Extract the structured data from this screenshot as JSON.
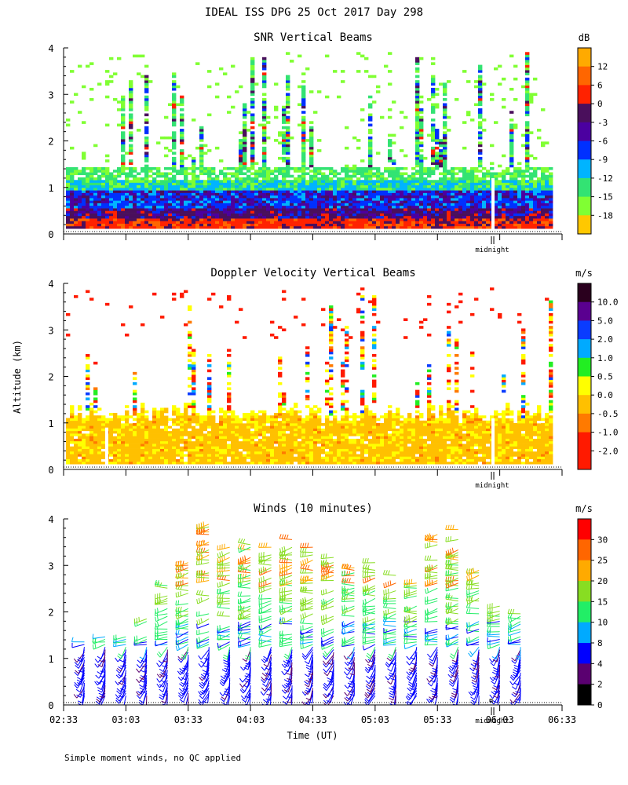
{
  "figure_title": "IDEAL ISS DPG  25 Oct 2017 Day 298",
  "footnote": "Simple moment winds, no QC applied",
  "shared_axes": {
    "ylabel": "Altitude (km)",
    "xlabel": "Time (UT)",
    "x_tick_labels": [
      "02:33",
      "03:03",
      "03:33",
      "04:03",
      "04:33",
      "05:03",
      "05:33",
      "06:03",
      "06:33"
    ],
    "x_range_minutes_from_0233": [
      0,
      240
    ],
    "y_range_km": [
      0,
      4
    ],
    "y_ticks": [
      "0",
      "1",
      "2",
      "3",
      "4"
    ],
    "midnight_label": "midnight"
  },
  "chart_data": [
    {
      "type": "heatmap",
      "title": "SNR Vertical Beams",
      "units": "dB",
      "colorbar": {
        "labels": [
          "12",
          "6",
          "0",
          "-3",
          "-6",
          "-9",
          "-12",
          "-15",
          "-18"
        ],
        "colors": [
          "#ffaa00",
          "#ff6600",
          "#ff2200",
          "#4a0f5c",
          "#4b00a0",
          "#0030ff",
          "#00b4ff",
          "#33e373",
          "#80ff33",
          "#ffc800"
        ]
      },
      "data_range_km": [
        0.1,
        3.9
      ],
      "notes": "Strongest SNR (red/orange) below 0.4 km, purple/blue band 0.3-1 km, sparse green convective plumes to 4 km"
    },
    {
      "type": "heatmap",
      "title": "Doppler Velocity Vertical Beams",
      "units": "m/s",
      "colorbar": {
        "labels": [
          "10.0",
          "5.0",
          "2.0",
          "1.0",
          "0.5",
          "0.0",
          "-0.5",
          "-1.0",
          "-2.0"
        ],
        "colors": [
          "#2a001e",
          "#5a0090",
          "#0a3cff",
          "#00aaff",
          "#22ee22",
          "#ffff00",
          "#ffc000",
          "#ff7a00",
          "#ff1a00",
          "#ff1a00"
        ]
      },
      "data_range_km": [
        0.1,
        3.9
      ],
      "notes": "Mostly gold/yellow (-0.5 to 0 m/s) below 1.2 km; scattered red/yellow returns up to 4 km"
    },
    {
      "type": "wind_barbs",
      "title": "Winds (10 minutes)",
      "units": "m/s",
      "averaging_minutes": 10,
      "colorbar": {
        "labels": [
          "30",
          "25",
          "20",
          "15",
          "10",
          "8",
          "4",
          "2",
          "0"
        ],
        "colors": [
          "#ff0000",
          "#ff6600",
          "#ffaa00",
          "#88dd22",
          "#22ee66",
          "#00aaff",
          "#0000ff",
          "#5a0070",
          "#000000"
        ]
      },
      "profile_times_minutes_from_0233": [
        10,
        20,
        30,
        40,
        50,
        60,
        70,
        80,
        90,
        100,
        110,
        120,
        130,
        140,
        150,
        160,
        170,
        180,
        190,
        200,
        210,
        220
      ],
      "profile_top_km": [
        1.4,
        1.5,
        1.5,
        1.9,
        2.6,
        3.1,
        3.9,
        3.4,
        3.5,
        3.5,
        3.6,
        3.4,
        3.5,
        3.0,
        3.1,
        2.8,
        2.7,
        3.7,
        3.9,
        3.0,
        2.2,
        2.0
      ],
      "notes": "Low levels 2-8 m/s (purple/blue), 1.5-2.5 km 10-20 m/s (green/cyan), upper levels 20-30 m/s (orange/red)"
    }
  ]
}
